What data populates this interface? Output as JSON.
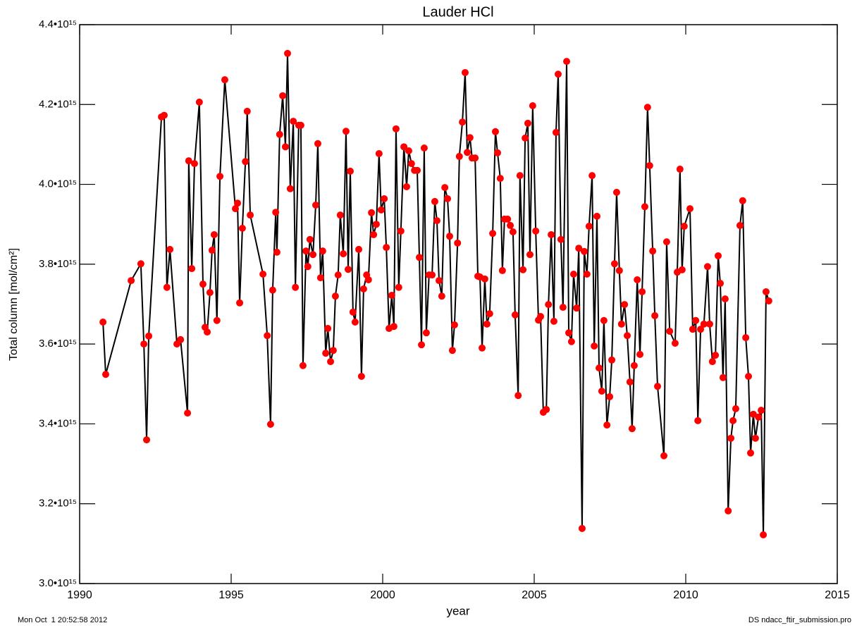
{
  "chart_data": {
    "type": "line",
    "title": "Lauder HCl",
    "xlabel": "year",
    "ylabel": "Total column [mol/cm²]",
    "footer_left": "Mon Oct  1 20:52:58 2012",
    "footer_right": "DS ndacc_ftir_submission.pro",
    "color": "#000000",
    "marker_color": "#ff0000",
    "xlim": [
      1990,
      2015
    ],
    "xticks": [
      1990,
      1995,
      2000,
      2005,
      2010,
      2015
    ],
    "ylim": [
      3000000000000000.0,
      4400000000000000.0
    ],
    "yticks": [
      {
        "value": 3000000000000000.0,
        "label": "3.0•10¹⁵"
      },
      {
        "value": 3200000000000000.0,
        "label": "3.2•10¹⁵"
      },
      {
        "value": 3400000000000000.0,
        "label": "3.4•10¹⁵"
      },
      {
        "value": 3600000000000000.0,
        "label": "3.6•10¹⁵"
      },
      {
        "value": 3800000000000000.0,
        "label": "3.8•10¹⁵"
      },
      {
        "value": 4000000000000000.0,
        "label": "4.0•10¹⁵"
      },
      {
        "value": 4200000000000000.0,
        "label": "4.2•10¹⁵"
      },
      {
        "value": 4400000000000000.0,
        "label": "4.4•10¹⁵"
      }
    ],
    "x": [
      1990.77,
      1990.86,
      1991.7,
      1992.02,
      1992.12,
      1992.21,
      1992.28,
      1992.7,
      1992.79,
      1992.88,
      1992.98,
      1993.21,
      1993.33,
      1993.56,
      1993.6,
      1993.7,
      1993.79,
      1993.95,
      1994.07,
      1994.14,
      1994.21,
      1994.3,
      1994.37,
      1994.44,
      1994.53,
      1994.63,
      1994.79,
      1995.14,
      1995.21,
      1995.28,
      1995.37,
      1995.47,
      1995.53,
      1995.63,
      1996.05,
      1996.19,
      1996.3,
      1996.37,
      1996.47,
      1996.51,
      1996.6,
      1996.7,
      1996.79,
      1996.86,
      1996.95,
      1997.05,
      1997.12,
      1997.23,
      1997.3,
      1997.37,
      1997.47,
      1997.53,
      1997.6,
      1997.7,
      1997.79,
      1997.86,
      1997.95,
      1998.02,
      1998.12,
      1998.19,
      1998.28,
      1998.37,
      1998.44,
      1998.53,
      1998.6,
      1998.7,
      1998.79,
      1998.86,
      1998.93,
      1999.02,
      1999.09,
      1999.21,
      1999.3,
      1999.37,
      1999.47,
      1999.53,
      1999.63,
      1999.7,
      1999.79,
      1999.88,
      1999.95,
      2000.05,
      2000.12,
      2000.21,
      2000.3,
      2000.37,
      2000.44,
      2000.53,
      2000.6,
      2000.7,
      2000.79,
      2000.86,
      2000.95,
      2001.05,
      2001.14,
      2001.21,
      2001.28,
      2001.37,
      2001.44,
      2001.53,
      2001.63,
      2001.72,
      2001.79,
      2001.86,
      2001.95,
      2002.05,
      2002.14,
      2002.21,
      2002.3,
      2002.37,
      2002.47,
      2002.53,
      2002.63,
      2002.72,
      2002.79,
      2002.88,
      2002.95,
      2003.05,
      2003.14,
      2003.21,
      2003.28,
      2003.37,
      2003.44,
      2003.53,
      2003.63,
      2003.72,
      2003.79,
      2003.88,
      2003.95,
      2004.02,
      2004.12,
      2004.21,
      2004.3,
      2004.37,
      2004.47,
      2004.53,
      2004.63,
      2004.7,
      2004.79,
      2004.86,
      2004.95,
      2005.05,
      2005.14,
      2005.21,
      2005.3,
      2005.4,
      2005.47,
      2005.56,
      2005.65,
      2005.72,
      2005.79,
      2005.88,
      2005.95,
      2006.07,
      2006.14,
      2006.23,
      2006.3,
      2006.4,
      2006.47,
      2006.58,
      2006.65,
      2006.74,
      2006.81,
      2006.91,
      2006.98,
      2007.07,
      2007.14,
      2007.23,
      2007.3,
      2007.4,
      2007.49,
      2007.56,
      2007.65,
      2007.72,
      2007.81,
      2007.88,
      2007.98,
      2008.07,
      2008.16,
      2008.23,
      2008.3,
      2008.4,
      2008.49,
      2008.56,
      2008.65,
      2008.74,
      2008.81,
      2008.91,
      2008.98,
      2009.07,
      2009.28,
      2009.37,
      2009.47,
      2009.65,
      2009.72,
      2009.81,
      2009.88,
      2009.95,
      2010.14,
      2010.23,
      2010.33,
      2010.4,
      2010.49,
      2010.6,
      2010.72,
      2010.79,
      2010.88,
      2010.98,
      2011.07,
      2011.14,
      2011.23,
      2011.3,
      2011.4,
      2011.49,
      2011.56,
      2011.65,
      2011.79,
      2011.88,
      2011.98,
      2012.07,
      2012.14,
      2012.23,
      2012.3,
      2012.4,
      2012.49,
      2012.56,
      2012.65,
      2012.74
    ],
    "values": [
      3655000000000000.0,
      3524000000000000.0,
      3759000000000000.0,
      3801000000000000.0,
      3600000000000000.0,
      3360000000000000.0,
      3620000000000000.0,
      4169000000000000.0,
      4173000000000000.0,
      3742000000000000.0,
      3837000000000000.0,
      3600000000000000.0,
      3611000000000000.0,
      3427000000000000.0,
      4059000000000000.0,
      3789000000000000.0,
      4052000000000000.0,
      4206000000000000.0,
      3750000000000000.0,
      3642000000000000.0,
      3630000000000000.0,
      3729000000000000.0,
      3835000000000000.0,
      3874000000000000.0,
      3659000000000000.0,
      4020000000000000.0,
      4262000000000000.0,
      3939000000000000.0,
      3953000000000000.0,
      3703000000000000.0,
      3890000000000000.0,
      4057000000000000.0,
      4183000000000000.0,
      3923000000000000.0,
      3775000000000000.0,
      3621000000000000.0,
      3399000000000000.0,
      3735000000000000.0,
      3930000000000000.0,
      3830000000000000.0,
      4125000000000000.0,
      4222000000000000.0,
      4094000000000000.0,
      4328000000000000.0,
      3989000000000000.0,
      4158000000000000.0,
      3742000000000000.0,
      4148000000000000.0,
      4148000000000000.0,
      3546000000000000.0,
      3833000000000000.0,
      3794000000000000.0,
      3862000000000000.0,
      3824000000000000.0,
      3948000000000000.0,
      4102000000000000.0,
      3766000000000000.0,
      3833000000000000.0,
      3577000000000000.0,
      3639000000000000.0,
      3556000000000000.0,
      3584000000000000.0,
      3720000000000000.0,
      3773000000000000.0,
      3923000000000000.0,
      3826000000000000.0,
      4133000000000000.0,
      3787000000000000.0,
      4033000000000000.0,
      3680000000000000.0,
      3655000000000000.0,
      3837000000000000.0,
      3519000000000000.0,
      3738000000000000.0,
      3773000000000000.0,
      3761000000000000.0,
      3929000000000000.0,
      3874000000000000.0,
      3900000000000000.0,
      4077000000000000.0,
      3936000000000000.0,
      3964000000000000.0,
      3842000000000000.0,
      3639000000000000.0,
      3722000000000000.0,
      3644000000000000.0,
      4139000000000000.0,
      3742000000000000.0,
      3883000000000000.0,
      4094000000000000.0,
      3994000000000000.0,
      4084000000000000.0,
      4052000000000000.0,
      4035000000000000.0,
      4035000000000000.0,
      3817000000000000.0,
      3598000000000000.0,
      4091000000000000.0,
      3628000000000000.0,
      3773000000000000.0,
      3773000000000000.0,
      3957000000000000.0,
      3909000000000000.0,
      3759000000000000.0,
      3720000000000000.0,
      3992000000000000.0,
      3964000000000000.0,
      3870000000000000.0,
      3584000000000000.0,
      3648000000000000.0,
      3853000000000000.0,
      4070000000000000.0,
      4156000000000000.0,
      4280000000000000.0,
      4080000000000000.0,
      4117000000000000.0,
      4066000000000000.0,
      4066000000000000.0,
      3770000000000000.0,
      3768000000000000.0,
      3590000000000000.0,
      3763000000000000.0,
      3650000000000000.0,
      3676000000000000.0,
      3877000000000000.0,
      4132000000000000.0,
      4079000000000000.0,
      4015000000000000.0,
      3784000000000000.0,
      3913000000000000.0,
      3913000000000000.0,
      3897000000000000.0,
      3881000000000000.0,
      3673000000000000.0,
      3471000000000000.0,
      4022000000000000.0,
      3786000000000000.0,
      4116000000000000.0,
      4153000000000000.0,
      3824000000000000.0,
      4197000000000000.0,
      3883000000000000.0,
      3660000000000000.0,
      3669000000000000.0,
      3429000000000000.0,
      3436000000000000.0,
      3699000000000000.0,
      3874000000000000.0,
      3657000000000000.0,
      4130000000000000.0,
      4276000000000000.0,
      3862000000000000.0,
      3692000000000000.0,
      4308000000000000.0,
      3628000000000000.0,
      3606000000000000.0,
      3775000000000000.0,
      3690000000000000.0,
      3840000000000000.0,
      3138000000000000.0,
      3832000000000000.0,
      3775000000000000.0,
      3895000000000000.0,
      4022000000000000.0,
      3595000000000000.0,
      3920000000000000.0,
      3540000000000000.0,
      3482000000000000.0,
      3659000000000000.0,
      3397000000000000.0,
      3468000000000000.0,
      3560000000000000.0,
      3801000000000000.0,
      3980000000000000.0,
      3784000000000000.0,
      3650000000000000.0,
      3699000000000000.0,
      3621000000000000.0,
      3505000000000000.0,
      3388000000000000.0,
      3546000000000000.0,
      3761000000000000.0,
      3574000000000000.0,
      3731000000000000.0,
      3944000000000000.0,
      4193000000000000.0,
      4047000000000000.0,
      3833000000000000.0,
      3671000000000000.0,
      3494000000000000.0,
      3320000000000000.0,
      3856000000000000.0,
      3632000000000000.0,
      3602000000000000.0,
      3780000000000000.0,
      4038000000000000.0,
      3786000000000000.0,
      3895000000000000.0,
      3939000000000000.0,
      3637000000000000.0,
      3659000000000000.0,
      3408000000000000.0,
      3637000000000000.0,
      3650000000000000.0,
      3794000000000000.0,
      3650000000000000.0,
      3556000000000000.0,
      3572000000000000.0,
      3821000000000000.0,
      3752000000000000.0,
      3516000000000000.0,
      3713000000000000.0,
      3182000000000000.0,
      3364000000000000.0,
      3408000000000000.0,
      3438000000000000.0,
      3897000000000000.0,
      3959000000000000.0,
      3616000000000000.0,
      3519000000000000.0,
      3327000000000000.0,
      3424000000000000.0,
      3364000000000000.0,
      3417000000000000.0,
      3434000000000000.0,
      3122000000000000.0,
      3731000000000000.0,
      3708000000000000.0
    ]
  }
}
